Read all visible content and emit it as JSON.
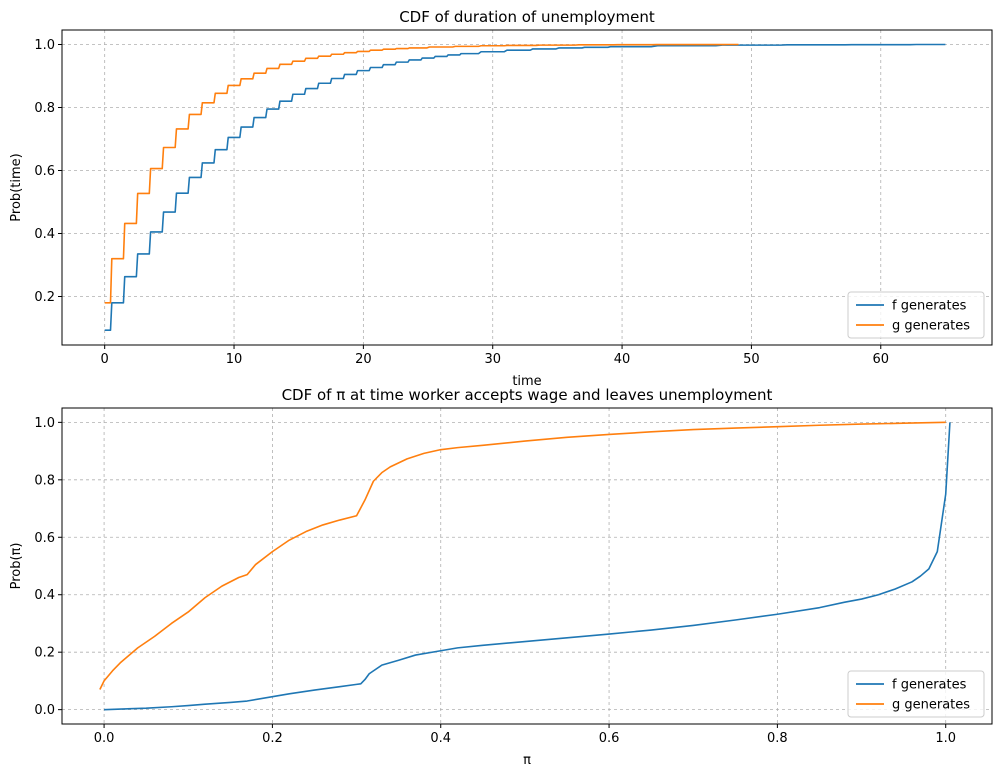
{
  "colors": {
    "f": "#1f77b4",
    "g": "#ff7f0e",
    "grid": "#b0b0b0"
  },
  "chart_data": [
    {
      "type": "line",
      "title": "CDF of duration of unemployment",
      "xlabel": "time",
      "ylabel": "Prob(time)",
      "xlim": [
        -3.3,
        68.6
      ],
      "ylim": [
        0.046,
        1.046
      ],
      "xticks": [
        0,
        10,
        20,
        30,
        40,
        50,
        60
      ],
      "yticks": [
        0.2,
        0.4,
        0.6,
        0.8,
        1.0
      ],
      "grid": true,
      "legend_position": "lower right",
      "step": true,
      "series": [
        {
          "name": "f generates",
          "color": "#1f77b4",
          "x": [
            0,
            1,
            2,
            3,
            4,
            5,
            6,
            7,
            8,
            9,
            10,
            11,
            12,
            13,
            14,
            15,
            16,
            17,
            18,
            19,
            20,
            21,
            22,
            23,
            24,
            25,
            26,
            27,
            28,
            30,
            32,
            34,
            36,
            38,
            40,
            45,
            50,
            55,
            60,
            65
          ],
          "y": [
            0.093,
            0.18,
            0.263,
            0.335,
            0.405,
            0.468,
            0.528,
            0.578,
            0.624,
            0.666,
            0.705,
            0.738,
            0.768,
            0.795,
            0.82,
            0.842,
            0.86,
            0.877,
            0.892,
            0.905,
            0.917,
            0.927,
            0.936,
            0.944,
            0.951,
            0.957,
            0.962,
            0.967,
            0.971,
            0.977,
            0.982,
            0.986,
            0.989,
            0.991,
            0.993,
            0.996,
            0.998,
            0.999,
            0.9995,
            1.0
          ]
        },
        {
          "name": "g generates",
          "color": "#ff7f0e",
          "x": [
            0,
            1,
            2,
            3,
            4,
            5,
            6,
            7,
            8,
            9,
            10,
            11,
            12,
            13,
            14,
            15,
            16,
            17,
            18,
            19,
            20,
            21,
            22,
            23,
            24,
            26,
            28,
            30,
            32,
            35,
            38,
            41,
            44,
            47,
            49
          ],
          "y": [
            0.18,
            0.32,
            0.432,
            0.527,
            0.606,
            0.673,
            0.732,
            0.778,
            0.815,
            0.845,
            0.87,
            0.891,
            0.909,
            0.924,
            0.937,
            0.947,
            0.956,
            0.963,
            0.969,
            0.974,
            0.978,
            0.982,
            0.985,
            0.987,
            0.989,
            0.992,
            0.994,
            0.996,
            0.997,
            0.998,
            0.999,
            0.9995,
            0.9998,
            0.9999,
            1.0
          ]
        }
      ]
    },
    {
      "type": "line",
      "title": "CDF of π at time worker accepts wage and leaves unemployment",
      "xlabel": "π",
      "ylabel": "Prob(π)",
      "xlim": [
        -0.05,
        1.055
      ],
      "ylim": [
        -0.05,
        1.05
      ],
      "xticks": [
        0.0,
        0.2,
        0.4,
        0.6,
        0.8,
        1.0
      ],
      "yticks": [
        0.0,
        0.2,
        0.4,
        0.6,
        0.8,
        1.0
      ],
      "grid": true,
      "legend_position": "lower right",
      "step": false,
      "series": [
        {
          "name": "f generates",
          "color": "#1f77b4",
          "x": [
            0.0,
            0.02,
            0.05,
            0.08,
            0.1,
            0.12,
            0.15,
            0.17,
            0.2,
            0.22,
            0.25,
            0.28,
            0.3,
            0.305,
            0.31,
            0.315,
            0.32,
            0.33,
            0.35,
            0.37,
            0.4,
            0.42,
            0.45,
            0.5,
            0.55,
            0.6,
            0.65,
            0.7,
            0.75,
            0.8,
            0.85,
            0.88,
            0.9,
            0.92,
            0.94,
            0.96,
            0.97,
            0.98,
            0.99,
            1.0,
            1.005
          ],
          "y": [
            0.0,
            0.002,
            0.005,
            0.01,
            0.014,
            0.019,
            0.025,
            0.03,
            0.045,
            0.055,
            0.068,
            0.08,
            0.088,
            0.09,
            0.105,
            0.125,
            0.135,
            0.155,
            0.172,
            0.19,
            0.205,
            0.215,
            0.224,
            0.237,
            0.25,
            0.263,
            0.277,
            0.293,
            0.312,
            0.332,
            0.355,
            0.374,
            0.385,
            0.4,
            0.42,
            0.445,
            0.465,
            0.49,
            0.55,
            0.75,
            1.0
          ]
        },
        {
          "name": "g generates",
          "color": "#ff7f0e",
          "x": [
            -0.005,
            0.0,
            0.01,
            0.02,
            0.04,
            0.06,
            0.08,
            0.1,
            0.12,
            0.14,
            0.16,
            0.17,
            0.18,
            0.2,
            0.22,
            0.24,
            0.26,
            0.28,
            0.3,
            0.31,
            0.32,
            0.33,
            0.34,
            0.36,
            0.38,
            0.4,
            0.42,
            0.45,
            0.5,
            0.55,
            0.6,
            0.65,
            0.7,
            0.75,
            0.8,
            0.85,
            0.9,
            0.95,
            1.0
          ],
          "y": [
            0.07,
            0.1,
            0.135,
            0.165,
            0.215,
            0.255,
            0.3,
            0.34,
            0.39,
            0.43,
            0.46,
            0.47,
            0.505,
            0.55,
            0.59,
            0.62,
            0.643,
            0.66,
            0.675,
            0.73,
            0.795,
            0.825,
            0.845,
            0.873,
            0.892,
            0.905,
            0.912,
            0.92,
            0.935,
            0.948,
            0.958,
            0.967,
            0.975,
            0.98,
            0.985,
            0.99,
            0.994,
            0.997,
            1.0
          ]
        }
      ]
    }
  ]
}
